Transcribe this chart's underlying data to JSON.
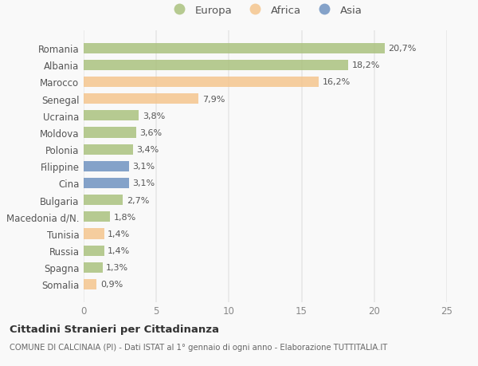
{
  "categories": [
    "Romania",
    "Albania",
    "Marocco",
    "Senegal",
    "Ucraina",
    "Moldova",
    "Polonia",
    "Filippine",
    "Cina",
    "Bulgaria",
    "Macedonia d/N.",
    "Tunisia",
    "Russia",
    "Spagna",
    "Somalia"
  ],
  "values": [
    20.7,
    18.2,
    16.2,
    7.9,
    3.8,
    3.6,
    3.4,
    3.1,
    3.1,
    2.7,
    1.8,
    1.4,
    1.4,
    1.3,
    0.9
  ],
  "labels": [
    "20,7%",
    "18,2%",
    "16,2%",
    "7,9%",
    "3,8%",
    "3,6%",
    "3,4%",
    "3,1%",
    "3,1%",
    "2,7%",
    "1,8%",
    "1,4%",
    "1,4%",
    "1,3%",
    "0,9%"
  ],
  "colors": [
    "#a8c07a",
    "#a8c07a",
    "#f5c48a",
    "#f5c48a",
    "#a8c07a",
    "#a8c07a",
    "#a8c07a",
    "#6a8fbf",
    "#6a8fbf",
    "#a8c07a",
    "#a8c07a",
    "#f5c48a",
    "#a8c07a",
    "#a8c07a",
    "#f5c48a"
  ],
  "legend_labels": [
    "Europa",
    "Africa",
    "Asia"
  ],
  "legend_colors": [
    "#a8c07a",
    "#f5c48a",
    "#6a8fbf"
  ],
  "title": "Cittadini Stranieri per Cittadinanza",
  "subtitle": "COMUNE DI CALCINAIA (PI) - Dati ISTAT al 1° gennaio di ogni anno - Elaborazione TUTTITALIA.IT",
  "xlim": [
    0,
    25
  ],
  "xticks": [
    0,
    5,
    10,
    15,
    20,
    25
  ],
  "background_color": "#f9f9f9",
  "grid_color": "#e8e8e8",
  "bar_alpha": 0.82,
  "bar_height": 0.62
}
